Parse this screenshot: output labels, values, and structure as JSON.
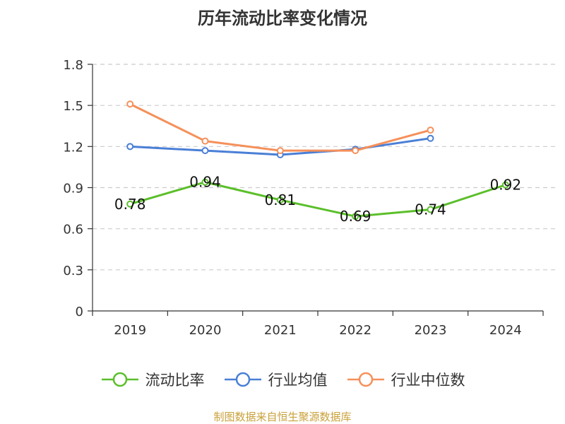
{
  "chart_data": {
    "type": "line",
    "title": "历年流动比率变化情况",
    "categories": [
      "2019",
      "2020",
      "2021",
      "2022",
      "2023",
      "2024"
    ],
    "series": [
      {
        "name": "流动比率",
        "values": [
          0.78,
          0.94,
          0.81,
          0.69,
          0.74,
          0.92
        ],
        "color": "#5bbf2a",
        "show_labels": true
      },
      {
        "name": "行业均值",
        "values": [
          1.2,
          1.17,
          1.14,
          1.18,
          1.26,
          null
        ],
        "color": "#4a7fd6",
        "show_labels": false
      },
      {
        "name": "行业中位数",
        "values": [
          1.51,
          1.24,
          1.17,
          1.17,
          1.32,
          null
        ],
        "color": "#f5905a",
        "show_labels": false
      }
    ],
    "y_ticks": [
      "0",
      "0.3",
      "0.6",
      "0.9",
      "1.2",
      "1.5",
      "1.8"
    ],
    "ylim": [
      0,
      1.8
    ],
    "grid": true,
    "legend_position": "bottom"
  },
  "source_note": "制图数据来自恒生聚源数据库"
}
